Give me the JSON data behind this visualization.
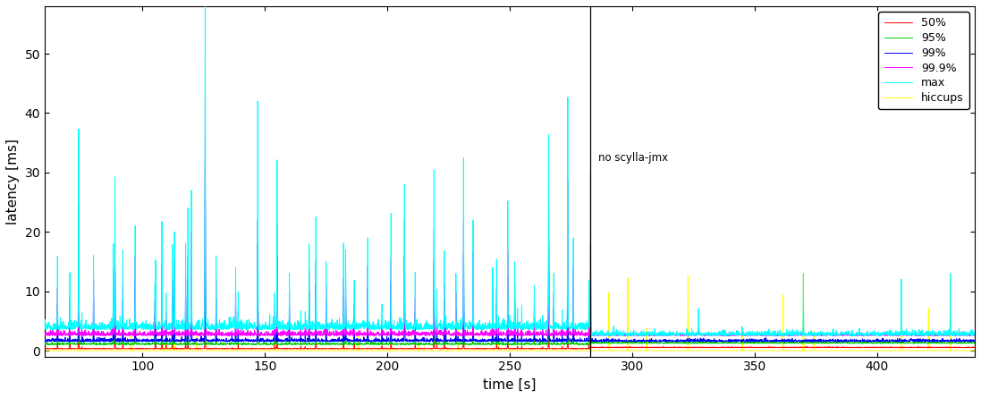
{
  "title": "",
  "xlabel": "time [s]",
  "ylabel": "latency [ms]",
  "xlim": [
    60,
    440
  ],
  "ylim": [
    -1,
    58
  ],
  "xticks": [
    100,
    150,
    200,
    250,
    300,
    350,
    400
  ],
  "yticks": [
    0,
    10,
    20,
    30,
    40,
    50
  ],
  "vline_x": 283,
  "vline_label": "no scylla-jmx",
  "legend_entries": [
    "50%",
    "95%",
    "99%",
    "99.9%",
    "max",
    "hiccups"
  ],
  "line_colors": {
    "p50": "#ff0000",
    "p95": "#00cc00",
    "p99": "#0000ff",
    "p999": "#ff00ff",
    "max": "#00ffff",
    "hiccups": "#ffff00"
  },
  "background_color": "#ffffff",
  "transition_x": 283,
  "t_start": 60,
  "t_end": 440,
  "n_points": 4000
}
